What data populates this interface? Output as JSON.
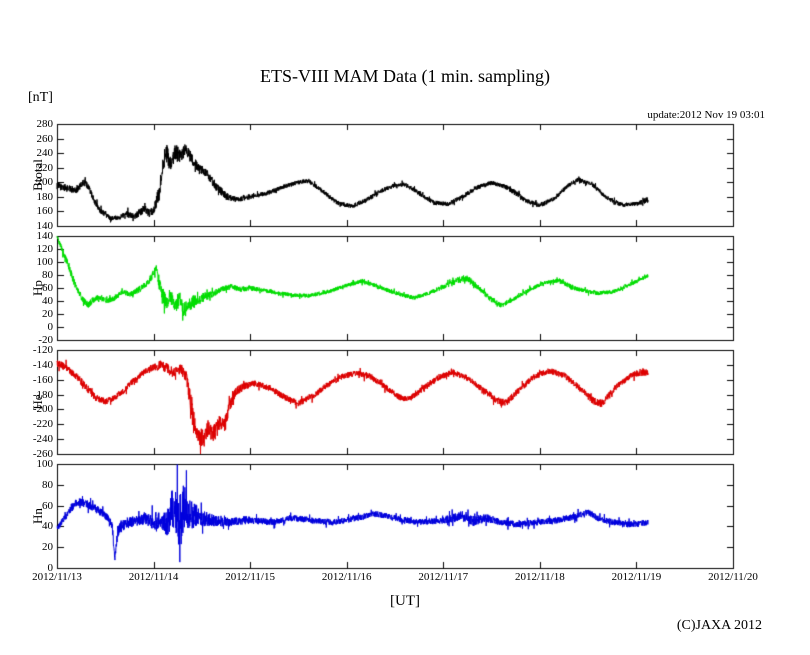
{
  "chart": {
    "title": "ETS-VIII MAM Data (1 min. sampling)",
    "unit_label": "[nT]",
    "update_text": "update:2012 Nov 19 03:01",
    "xlabel": "[UT]",
    "copyright": "(C)JAXA 2012"
  },
  "chart_data": {
    "type": "line",
    "title": "ETS-VIII MAM Data (1 min. sampling)",
    "xlabel": "[UT]",
    "ylabel": "[nT]",
    "grid": false,
    "legend": "none",
    "x_tick_labels": [
      "2012/11/13",
      "2012/11/14",
      "2012/11/15",
      "2012/11/16",
      "2012/11/17",
      "2012/11/18",
      "2012/11/19",
      "2012/11/20"
    ],
    "x_range_days": [
      0,
      7
    ],
    "data_end_day": 6.12,
    "panels": [
      {
        "name": "Btotal",
        "color": "#000000",
        "ylim": [
          140,
          280
        ],
        "ytick_step": 20,
        "keypoints": [
          [
            0,
            195,
            5
          ],
          [
            0.1,
            192,
            5
          ],
          [
            0.2,
            189,
            4
          ],
          [
            0.28,
            200,
            5
          ],
          [
            0.33,
            193,
            4
          ],
          [
            0.38,
            176,
            4
          ],
          [
            0.45,
            161,
            4
          ],
          [
            0.55,
            151,
            3
          ],
          [
            0.65,
            152,
            3
          ],
          [
            0.72,
            158,
            4
          ],
          [
            0.8,
            153,
            4
          ],
          [
            0.9,
            163,
            6
          ],
          [
            0.97,
            157,
            6
          ],
          [
            1.02,
            168,
            8
          ],
          [
            1.06,
            186,
            12
          ],
          [
            1.1,
            232,
            14
          ],
          [
            1.14,
            238,
            14
          ],
          [
            1.18,
            222,
            10
          ],
          [
            1.23,
            243,
            12
          ],
          [
            1.28,
            232,
            10
          ],
          [
            1.33,
            247,
            8
          ],
          [
            1.38,
            235,
            8
          ],
          [
            1.45,
            222,
            6
          ],
          [
            1.55,
            212,
            6
          ],
          [
            1.65,
            194,
            6
          ],
          [
            1.75,
            181,
            5
          ],
          [
            1.85,
            176,
            4
          ],
          [
            1.95,
            179,
            4
          ],
          [
            2.05,
            181,
            3
          ],
          [
            2.2,
            186,
            3
          ],
          [
            2.35,
            194,
            3
          ],
          [
            2.5,
            200,
            3
          ],
          [
            2.6,
            202,
            3
          ],
          [
            2.75,
            188,
            3
          ],
          [
            2.9,
            172,
            3
          ],
          [
            3.05,
            167,
            3
          ],
          [
            3.2,
            175,
            3
          ],
          [
            3.35,
            188,
            3
          ],
          [
            3.5,
            196,
            3
          ],
          [
            3.6,
            197,
            3
          ],
          [
            3.75,
            185,
            3
          ],
          [
            3.9,
            172,
            3
          ],
          [
            4.05,
            170,
            3
          ],
          [
            4.2,
            180,
            3
          ],
          [
            4.35,
            193,
            3
          ],
          [
            4.5,
            199,
            3
          ],
          [
            4.6,
            196,
            3
          ],
          [
            4.7,
            190,
            4
          ],
          [
            4.85,
            175,
            3
          ],
          [
            5,
            168,
            3
          ],
          [
            5.15,
            178,
            3
          ],
          [
            5.3,
            196,
            3
          ],
          [
            5.4,
            204,
            3
          ],
          [
            5.55,
            196,
            3
          ],
          [
            5.7,
            178,
            3
          ],
          [
            5.85,
            169,
            3
          ],
          [
            6,
            170,
            3
          ],
          [
            6.12,
            176,
            4
          ]
        ]
      },
      {
        "name": "Hp",
        "color": "#00dd00",
        "ylim": [
          -20,
          140
        ],
        "ytick_step": 20,
        "keypoints": [
          [
            0,
            140,
            2
          ],
          [
            0.03,
            128,
            4
          ],
          [
            0.07,
            112,
            5
          ],
          [
            0.12,
            95,
            6
          ],
          [
            0.17,
            72,
            6
          ],
          [
            0.22,
            55,
            5
          ],
          [
            0.27,
            42,
            5
          ],
          [
            0.32,
            34,
            5
          ],
          [
            0.38,
            42,
            5
          ],
          [
            0.45,
            46,
            4
          ],
          [
            0.52,
            40,
            4
          ],
          [
            0.6,
            44,
            4
          ],
          [
            0.68,
            54,
            4
          ],
          [
            0.76,
            50,
            4
          ],
          [
            0.85,
            58,
            5
          ],
          [
            0.93,
            66,
            5
          ],
          [
            1,
            82,
            6
          ],
          [
            1.03,
            92,
            5
          ],
          [
            1.07,
            56,
            14
          ],
          [
            1.12,
            38,
            14
          ],
          [
            1.17,
            48,
            12
          ],
          [
            1.22,
            32,
            12
          ],
          [
            1.27,
            42,
            12
          ],
          [
            1.32,
            26,
            12
          ],
          [
            1.38,
            36,
            10
          ],
          [
            1.45,
            42,
            10
          ],
          [
            1.52,
            46,
            7
          ],
          [
            1.6,
            50,
            5
          ],
          [
            1.7,
            58,
            4
          ],
          [
            1.8,
            62,
            4
          ],
          [
            1.9,
            58,
            4
          ],
          [
            2,
            60,
            4
          ],
          [
            2.15,
            56,
            3
          ],
          [
            2.3,
            52,
            3
          ],
          [
            2.45,
            49,
            3
          ],
          [
            2.6,
            48,
            3
          ],
          [
            2.8,
            54,
            3
          ],
          [
            3,
            64,
            3
          ],
          [
            3.15,
            70,
            3
          ],
          [
            3.3,
            64,
            3
          ],
          [
            3.45,
            55,
            3
          ],
          [
            3.6,
            48,
            3
          ],
          [
            3.7,
            45,
            3
          ],
          [
            3.85,
            52,
            3
          ],
          [
            4,
            62,
            4
          ],
          [
            4.15,
            72,
            5
          ],
          [
            4.25,
            75,
            5
          ],
          [
            4.35,
            62,
            4
          ],
          [
            4.5,
            42,
            4
          ],
          [
            4.6,
            33,
            4
          ],
          [
            4.75,
            45,
            3
          ],
          [
            4.9,
            58,
            3
          ],
          [
            5.05,
            68,
            3
          ],
          [
            5.2,
            72,
            3
          ],
          [
            5.32,
            62,
            4
          ],
          [
            5.45,
            56,
            3
          ],
          [
            5.6,
            52,
            3
          ],
          [
            5.75,
            54,
            3
          ],
          [
            5.9,
            63,
            3
          ],
          [
            6,
            70,
            3
          ],
          [
            6.12,
            79,
            3
          ]
        ]
      },
      {
        "name": "He",
        "color": "#dd0000",
        "ylim": [
          -260,
          -120
        ],
        "ytick_step": 20,
        "keypoints": [
          [
            0,
            -138,
            5
          ],
          [
            0.1,
            -144,
            5
          ],
          [
            0.2,
            -155,
            5
          ],
          [
            0.3,
            -170,
            5
          ],
          [
            0.4,
            -184,
            5
          ],
          [
            0.5,
            -190,
            4
          ],
          [
            0.6,
            -184,
            4
          ],
          [
            0.7,
            -174,
            4
          ],
          [
            0.8,
            -160,
            4
          ],
          [
            0.9,
            -150,
            4
          ],
          [
            1,
            -143,
            6
          ],
          [
            1.08,
            -140,
            6
          ],
          [
            1.15,
            -146,
            7
          ],
          [
            1.22,
            -151,
            7
          ],
          [
            1.28,
            -145,
            7
          ],
          [
            1.34,
            -155,
            8
          ],
          [
            1.4,
            -205,
            15
          ],
          [
            1.46,
            -235,
            12
          ],
          [
            1.52,
            -240,
            12
          ],
          [
            1.57,
            -224,
            12
          ],
          [
            1.62,
            -234,
            12
          ],
          [
            1.68,
            -218,
            10
          ],
          [
            1.73,
            -222,
            10
          ],
          [
            1.78,
            -198,
            8
          ],
          [
            1.85,
            -176,
            6
          ],
          [
            1.95,
            -168,
            5
          ],
          [
            2.05,
            -165,
            4
          ],
          [
            2.2,
            -171,
            4
          ],
          [
            2.35,
            -183,
            4
          ],
          [
            2.5,
            -192,
            4
          ],
          [
            2.65,
            -182,
            4
          ],
          [
            2.8,
            -167,
            4
          ],
          [
            2.95,
            -156,
            4
          ],
          [
            3.1,
            -151,
            4
          ],
          [
            3.25,
            -156,
            4
          ],
          [
            3.4,
            -170,
            4
          ],
          [
            3.55,
            -184,
            4
          ],
          [
            3.65,
            -186,
            4
          ],
          [
            3.8,
            -171,
            4
          ],
          [
            3.95,
            -157,
            4
          ],
          [
            4.1,
            -150,
            4
          ],
          [
            4.25,
            -158,
            4
          ],
          [
            4.4,
            -172,
            4
          ],
          [
            4.55,
            -187,
            5
          ],
          [
            4.65,
            -191,
            5
          ],
          [
            4.8,
            -172,
            4
          ],
          [
            4.95,
            -155,
            4
          ],
          [
            5.1,
            -148,
            4
          ],
          [
            5.25,
            -154,
            4
          ],
          [
            5.4,
            -170,
            4
          ],
          [
            5.55,
            -188,
            5
          ],
          [
            5.65,
            -192,
            5
          ],
          [
            5.8,
            -168,
            4
          ],
          [
            5.95,
            -154,
            4
          ],
          [
            6.05,
            -150,
            5
          ],
          [
            6.12,
            -151,
            5
          ]
        ]
      },
      {
        "name": "Hn",
        "color": "#0000dd",
        "ylim": [
          0,
          100
        ],
        "ytick_step": 20,
        "keypoints": [
          [
            0,
            38,
            3
          ],
          [
            0.08,
            48,
            3
          ],
          [
            0.15,
            58,
            4
          ],
          [
            0.22,
            64,
            4
          ],
          [
            0.3,
            62,
            4
          ],
          [
            0.38,
            58,
            4
          ],
          [
            0.45,
            54,
            4
          ],
          [
            0.52,
            48,
            4
          ],
          [
            0.57,
            42,
            4
          ],
          [
            0.6,
            8,
            4
          ],
          [
            0.63,
            36,
            5
          ],
          [
            0.7,
            42,
            6
          ],
          [
            0.8,
            45,
            5
          ],
          [
            0.9,
            47,
            5
          ],
          [
            1,
            44,
            8
          ],
          [
            1.08,
            47,
            8
          ],
          [
            1.14,
            42,
            12
          ],
          [
            1.2,
            58,
            22
          ],
          [
            1.26,
            46,
            25
          ],
          [
            1.32,
            60,
            22
          ],
          [
            1.38,
            52,
            15
          ],
          [
            1.45,
            50,
            10
          ],
          [
            1.55,
            47,
            7
          ],
          [
            1.65,
            45,
            5
          ],
          [
            1.8,
            44,
            4
          ],
          [
            1.95,
            46,
            4
          ],
          [
            2.1,
            45,
            3
          ],
          [
            2.25,
            44,
            3
          ],
          [
            2.4,
            48,
            3
          ],
          [
            2.55,
            47,
            3
          ],
          [
            2.7,
            45,
            3
          ],
          [
            2.85,
            44,
            3
          ],
          [
            3,
            46,
            3
          ],
          [
            3.15,
            49,
            3
          ],
          [
            3.3,
            52,
            3
          ],
          [
            3.45,
            49,
            3
          ],
          [
            3.6,
            46,
            3
          ],
          [
            3.75,
            44,
            3
          ],
          [
            3.9,
            45,
            3
          ],
          [
            4.05,
            47,
            4
          ],
          [
            4.2,
            50,
            5
          ],
          [
            4.3,
            45,
            5
          ],
          [
            4.45,
            48,
            4
          ],
          [
            4.6,
            44,
            3
          ],
          [
            4.75,
            42,
            3
          ],
          [
            4.9,
            43,
            3
          ],
          [
            5.05,
            45,
            3
          ],
          [
            5.2,
            46,
            3
          ],
          [
            5.35,
            49,
            3
          ],
          [
            5.5,
            54,
            3
          ],
          [
            5.6,
            48,
            3
          ],
          [
            5.75,
            44,
            3
          ],
          [
            5.9,
            42,
            3
          ],
          [
            6,
            42,
            3
          ],
          [
            6.12,
            44,
            3
          ]
        ]
      }
    ]
  }
}
